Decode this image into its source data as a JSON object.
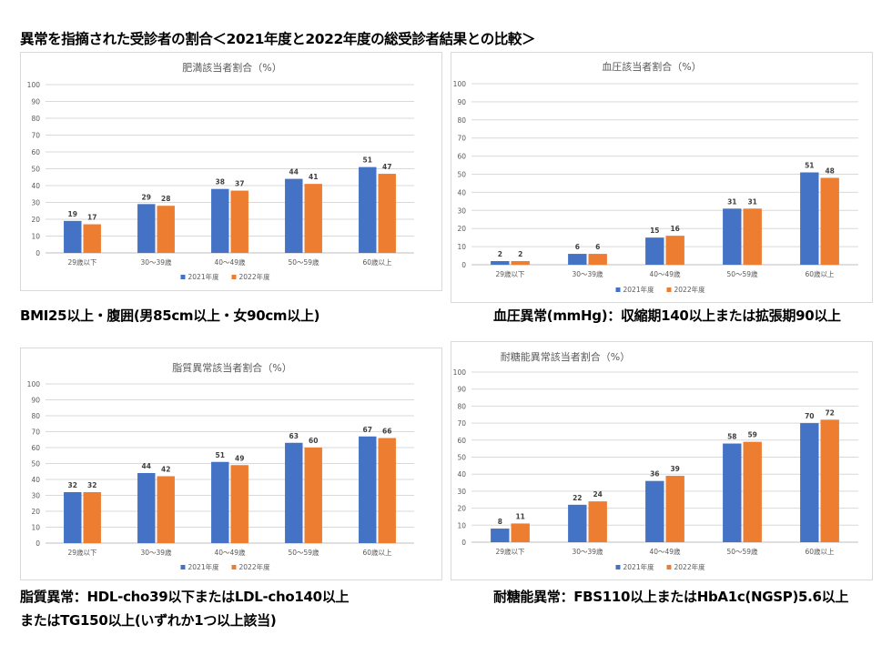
{
  "page": {
    "title": "異常を指摘された受診者の割合＜2021年度と2022年度の総受診者結果との比較＞"
  },
  "colors": {
    "series_2021": "#4472c4",
    "series_2022": "#ed7d31",
    "grid": "#d9d9d9",
    "axis_text": "#595959"
  },
  "captions": {
    "obesity": "BMI25以上・腹囲(男85cm以上・女90cm以上)",
    "blood_pressure": "血圧異常(mmHg)：収縮期140以上または拡張期90以上",
    "lipid_line1": "脂質異常：HDL-cho39以下またはLDL-cho140以上",
    "lipid_line2": "またはTG150以上(いずれか1つ以上該当)",
    "glucose": "耐糖能異常：FBS110以上またはHbA1c(NGSP)5.6以上"
  },
  "chart_data": [
    {
      "id": "obesity",
      "type": "bar",
      "title": "肥満該当者割合（%）",
      "categories": [
        "29歳以下",
        "30～39歳",
        "40～49歳",
        "50～59歳",
        "60歳以上"
      ],
      "series": [
        {
          "name": "2021年度",
          "values": [
            19,
            29,
            38,
            44,
            51
          ]
        },
        {
          "name": "2022年度",
          "values": [
            17,
            28,
            37,
            41,
            47
          ]
        }
      ],
      "ylim": [
        0,
        100
      ],
      "yticks": [
        0,
        10,
        20,
        30,
        40,
        50,
        60,
        70,
        80,
        90,
        100
      ],
      "xlabel": "",
      "ylabel": "",
      "grid": true,
      "legend": "bottom"
    },
    {
      "id": "blood_pressure",
      "type": "bar",
      "title": "血圧該当者割合（%）",
      "categories": [
        "29歳以下",
        "30～39歳",
        "40～49歳",
        "50～59歳",
        "60歳以上"
      ],
      "series": [
        {
          "name": "2021年度",
          "values": [
            2,
            6,
            15,
            31,
            51
          ]
        },
        {
          "name": "2022年度",
          "values": [
            2,
            6,
            16,
            31,
            48
          ]
        }
      ],
      "ylim": [
        0,
        100
      ],
      "yticks": [
        0,
        10,
        20,
        30,
        40,
        50,
        60,
        70,
        80,
        90,
        100
      ],
      "xlabel": "",
      "ylabel": "",
      "grid": true,
      "legend": "bottom"
    },
    {
      "id": "lipid",
      "type": "bar",
      "title": "脂質異常該当者割合（%）",
      "categories": [
        "29歳以下",
        "30～39歳",
        "40～49歳",
        "50～59歳",
        "60歳以上"
      ],
      "series": [
        {
          "name": "2021年度",
          "values": [
            32,
            44,
            51,
            63,
            67
          ]
        },
        {
          "name": "2022年度",
          "values": [
            32,
            42,
            49,
            60,
            66
          ]
        }
      ],
      "ylim": [
        0,
        100
      ],
      "yticks": [
        0,
        10,
        20,
        30,
        40,
        50,
        60,
        70,
        80,
        90,
        100
      ],
      "xlabel": "",
      "ylabel": "",
      "grid": true,
      "legend": "bottom"
    },
    {
      "id": "glucose",
      "type": "bar",
      "title": "耐糖能異常該当者割合（%）",
      "categories": [
        "29歳以下",
        "30～39歳",
        "40～49歳",
        "50～59歳",
        "60歳以上"
      ],
      "series": [
        {
          "name": "2021年度",
          "values": [
            8,
            22,
            36,
            58,
            70
          ]
        },
        {
          "name": "2022年度",
          "values": [
            11,
            24,
            39,
            59,
            72
          ]
        }
      ],
      "ylim": [
        0,
        100
      ],
      "yticks": [
        0,
        10,
        20,
        30,
        40,
        50,
        60,
        70,
        80,
        90,
        100
      ],
      "xlabel": "",
      "ylabel": "",
      "grid": true,
      "legend": "bottom"
    }
  ]
}
